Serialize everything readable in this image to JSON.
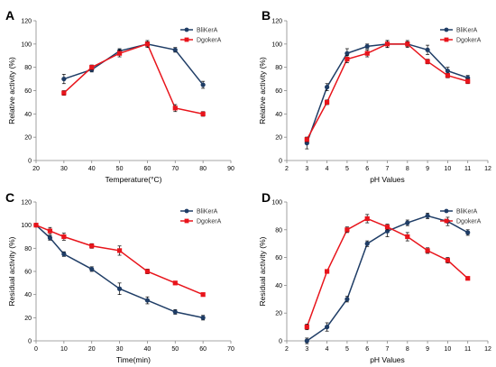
{
  "chart_data": [
    {
      "panel_label": "A",
      "type": "line",
      "xlabel": "Temperature(°C)",
      "ylabel": "Relative activity (%)",
      "xlim": [
        20,
        90
      ],
      "ylim": [
        0,
        120
      ],
      "xticks": [
        20,
        30,
        40,
        50,
        60,
        70,
        80,
        90
      ],
      "yticks": [
        0,
        20,
        40,
        60,
        80,
        100,
        120
      ],
      "legend_position": "top-right",
      "series": [
        {
          "name": "BliKerA",
          "color": "#1f3d66",
          "marker": "circle",
          "x": [
            30,
            40,
            50,
            60,
            70,
            80
          ],
          "y": [
            70,
            78,
            94,
            100,
            95,
            65
          ],
          "err": [
            4,
            2,
            2,
            2,
            2,
            3
          ]
        },
        {
          "name": "DgokerA",
          "color": "#e8141b",
          "marker": "square",
          "x": [
            30,
            40,
            50,
            60,
            70,
            80
          ],
          "y": [
            58,
            80,
            92,
            100,
            45,
            40
          ],
          "err": [
            2,
            2,
            3,
            3,
            3,
            2
          ]
        }
      ]
    },
    {
      "panel_label": "B",
      "type": "line",
      "xlabel": "pH Values",
      "ylabel": "Relative activity (%)",
      "xlim": [
        2,
        12
      ],
      "ylim": [
        0,
        120
      ],
      "xticks": [
        2,
        3,
        4,
        5,
        6,
        7,
        8,
        9,
        10,
        11,
        12
      ],
      "yticks": [
        0,
        20,
        40,
        60,
        80,
        100,
        120
      ],
      "legend_position": "top-right",
      "series": [
        {
          "name": "BliKerA",
          "color": "#1f3d66",
          "marker": "circle",
          "x": [
            3,
            4,
            5,
            6,
            7,
            8,
            9,
            10,
            11
          ],
          "y": [
            15,
            63,
            92,
            98,
            100,
            100,
            95,
            77,
            71
          ],
          "err": [
            5,
            3,
            4,
            2,
            3,
            2,
            4,
            3,
            2
          ]
        },
        {
          "name": "DgokerA",
          "color": "#e8141b",
          "marker": "square",
          "x": [
            3,
            4,
            5,
            6,
            7,
            8,
            9,
            10,
            11
          ],
          "y": [
            18,
            50,
            87,
            92,
            100,
            100,
            85,
            73,
            68
          ],
          "err": [
            2,
            2,
            3,
            3,
            3,
            3,
            2,
            2,
            2
          ]
        }
      ]
    },
    {
      "panel_label": "C",
      "type": "line",
      "xlabel": "Time(min)",
      "ylabel": "Residual activity (%)",
      "xlim": [
        0,
        70
      ],
      "ylim": [
        0,
        120
      ],
      "xticks": [
        0,
        10,
        20,
        30,
        40,
        50,
        60,
        70
      ],
      "yticks": [
        0,
        20,
        40,
        60,
        80,
        100,
        120
      ],
      "legend_position": "top-right",
      "series": [
        {
          "name": "BliKerA",
          "color": "#1f3d66",
          "marker": "circle",
          "x": [
            0,
            5,
            10,
            20,
            30,
            40,
            50,
            60
          ],
          "y": [
            100,
            89,
            75,
            62,
            45,
            35,
            25,
            20
          ],
          "err": [
            1,
            2,
            2,
            2,
            5,
            3,
            2,
            2
          ]
        },
        {
          "name": "DgokerA",
          "color": "#e8141b",
          "marker": "square",
          "x": [
            0,
            5,
            10,
            20,
            30,
            40,
            50,
            60
          ],
          "y": [
            100,
            95,
            90,
            82,
            78,
            60,
            50,
            40
          ],
          "err": [
            1,
            3,
            3,
            2,
            4,
            2,
            1,
            1
          ]
        }
      ]
    },
    {
      "panel_label": "D",
      "type": "line",
      "xlabel": "pH Values",
      "ylabel": "Residual activity (%)",
      "xlim": [
        2,
        12
      ],
      "ylim": [
        0,
        100
      ],
      "xticks": [
        2,
        3,
        4,
        5,
        6,
        7,
        8,
        9,
        10,
        11,
        12
      ],
      "yticks": [
        0,
        20,
        40,
        60,
        80,
        100
      ],
      "legend_position": "top-right",
      "series": [
        {
          "name": "BliKerA",
          "color": "#1f3d66",
          "marker": "circle",
          "x": [
            3,
            4,
            5,
            6,
            7,
            8,
            9,
            10,
            11
          ],
          "y": [
            0,
            10,
            30,
            70,
            79,
            85,
            90,
            86,
            78
          ],
          "err": [
            2,
            3,
            2,
            2,
            4,
            2,
            2,
            3,
            2
          ]
        },
        {
          "name": "DgokerA",
          "color": "#e8141b",
          "marker": "square",
          "x": [
            3,
            4,
            5,
            6,
            7,
            8,
            9,
            10,
            11
          ],
          "y": [
            10,
            50,
            80,
            88,
            82,
            75,
            65,
            58,
            45
          ],
          "err": [
            2,
            1,
            2,
            3,
            2,
            3,
            2,
            2,
            1
          ]
        }
      ]
    }
  ]
}
